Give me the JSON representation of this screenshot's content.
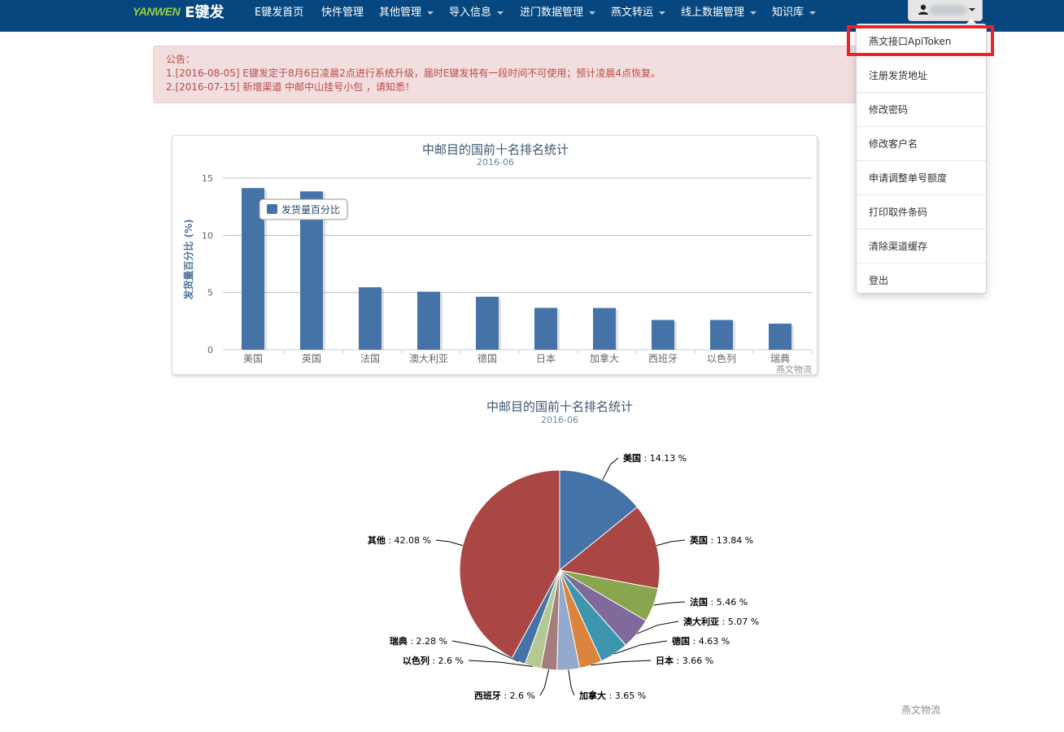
{
  "brand": {
    "logo": "YANWEN",
    "name": "E键发"
  },
  "nav": {
    "items": [
      {
        "label": "E键发首页",
        "has_caret": false
      },
      {
        "label": "快件管理",
        "has_caret": false
      },
      {
        "label": "其他管理",
        "has_caret": true
      },
      {
        "label": "导入信息",
        "has_caret": true
      },
      {
        "label": "进门数据管理",
        "has_caret": true
      },
      {
        "label": "燕文转运",
        "has_caret": true
      },
      {
        "label": "线上数据管理",
        "has_caret": true
      },
      {
        "label": "知识库",
        "has_caret": true
      }
    ]
  },
  "user_menu": {
    "items": [
      "燕文接口ApiToken",
      "注册发货地址",
      "修改密码",
      "修改客户名",
      "申请调整单号额度",
      "打印取件条码",
      "清除渠道缓存",
      "登出"
    ],
    "highlighted_index": 0
  },
  "notice": {
    "title": "公告：",
    "lines": [
      "1.[2016-08-05] E键发定于8月6日凌晨2点进行系统升级，届时E键发将有一段时间不可使用；预计凌晨4点恢复。",
      "2.[2016-07-15] 新增渠道 中邮中山挂号小包 ，请知悉！"
    ]
  },
  "chart_data": [
    {
      "type": "bar",
      "title": "中邮目的国前十名排名统计",
      "subtitle": "2016-06",
      "ylabel": "发货量百分比 (%)",
      "ylim": [
        0,
        15
      ],
      "yticks": [
        0,
        5,
        10,
        15
      ],
      "categories": [
        "美国",
        "英国",
        "法国",
        "澳大利亚",
        "德国",
        "日本",
        "加拿大",
        "西班牙",
        "以色列",
        "瑞典"
      ],
      "series": [
        {
          "name": "发货量百分比",
          "values": [
            14.13,
            13.84,
            5.46,
            5.07,
            4.63,
            3.66,
            3.65,
            2.6,
            2.6,
            2.28
          ]
        }
      ],
      "legend": "top-left",
      "credit": "燕文物流",
      "color": "#4572a7"
    },
    {
      "type": "pie",
      "title": "中邮目的国前十名排名统计",
      "subtitle": "2016-06",
      "slices": [
        {
          "name": "美国",
          "value": 14.13,
          "label": "14.13 %",
          "color": "#4572a7"
        },
        {
          "name": "英国",
          "value": 13.84,
          "label": "13.84 %",
          "color": "#aa4643"
        },
        {
          "name": "法国",
          "value": 5.46,
          "label": "5.46 %",
          "color": "#89a54e"
        },
        {
          "name": "澳大利亚",
          "value": 5.07,
          "label": "5.07 %",
          "color": "#80699b"
        },
        {
          "name": "德国",
          "value": 4.63,
          "label": "4.63 %",
          "color": "#3d96ae"
        },
        {
          "name": "日本",
          "value": 3.66,
          "label": "3.66 %",
          "color": "#db843d"
        },
        {
          "name": "加拿大",
          "value": 3.65,
          "label": "3.65 %",
          "color": "#92a8cd"
        },
        {
          "name": "西班牙",
          "value": 2.6,
          "label": "2.6 %",
          "color": "#a47d7c"
        },
        {
          "name": "以色列",
          "value": 2.6,
          "label": "2.6 %",
          "color": "#b5ca92"
        },
        {
          "name": "瑞典",
          "value": 2.28,
          "label": "2.28 %",
          "color": "#4572a7"
        },
        {
          "name": "其他",
          "value": 42.08,
          "label": "42.08 %",
          "color": "#aa4643"
        }
      ],
      "credit": "燕文物流"
    }
  ]
}
